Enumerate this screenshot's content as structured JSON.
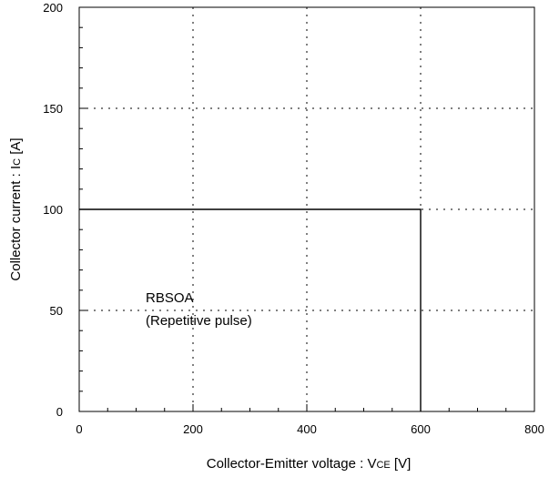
{
  "chart_data": {
    "type": "line",
    "title": "",
    "xlabel_main": "Collector-Emitter voltage : V",
    "xlabel_sub": "CE",
    "xlabel_unit": " [V]",
    "ylabel_main": "Collector current : I",
    "ylabel_sub": "C",
    "ylabel_unit": " [A]",
    "xlim": [
      0,
      800
    ],
    "ylim": [
      0,
      200
    ],
    "x_ticks": [
      0,
      200,
      400,
      600,
      800
    ],
    "y_ticks": [
      0,
      50,
      100,
      150,
      200
    ],
    "grid": true,
    "grid_style": "dotted",
    "series": [
      {
        "x": [
          0,
          600,
          600
        ],
        "y": [
          100,
          100,
          0
        ],
        "color": "#000000"
      }
    ],
    "annotation_line1": "RBSOA",
    "annotation_line2": "(Repetitive pulse)"
  }
}
